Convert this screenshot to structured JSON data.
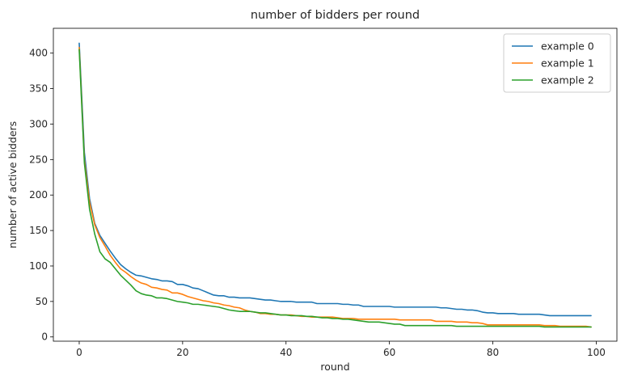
{
  "chart_data": {
    "type": "line",
    "title": "number of bidders per round",
    "xlabel": "round",
    "ylabel": "number of active bidders",
    "xlim": [
      -5,
      104
    ],
    "ylim": [
      -6,
      435
    ],
    "xticks": [
      0,
      20,
      40,
      60,
      80,
      100
    ],
    "yticks": [
      0,
      50,
      100,
      150,
      200,
      250,
      300,
      350,
      400
    ],
    "grid": false,
    "legend": "top-right",
    "colors": [
      "#1f77b4",
      "#ff7f0e",
      "#2ca02c"
    ],
    "series": [
      {
        "name": "example 0",
        "x": [
          0,
          1,
          2,
          3,
          4,
          5,
          6,
          7,
          8,
          9,
          10,
          11,
          12,
          13,
          14,
          15,
          16,
          17,
          18,
          19,
          20,
          21,
          22,
          23,
          24,
          25,
          26,
          27,
          28,
          29,
          30,
          31,
          32,
          33,
          34,
          35,
          36,
          37,
          38,
          39,
          40,
          41,
          42,
          43,
          44,
          45,
          46,
          47,
          48,
          49,
          50,
          51,
          52,
          53,
          54,
          55,
          56,
          57,
          58,
          59,
          60,
          61,
          62,
          63,
          64,
          65,
          66,
          67,
          68,
          69,
          70,
          71,
          72,
          73,
          74,
          75,
          76,
          77,
          78,
          79,
          80,
          81,
          82,
          83,
          84,
          85,
          86,
          87,
          88,
          89,
          90,
          91,
          92,
          93,
          94,
          95,
          96,
          97,
          98,
          99
        ],
        "values": [
          414,
          260,
          195,
          160,
          143,
          132,
          121,
          111,
          102,
          96,
          91,
          87,
          86,
          84,
          82,
          81,
          79,
          79,
          78,
          74,
          74,
          72,
          69,
          68,
          65,
          62,
          59,
          58,
          58,
          56,
          56,
          55,
          55,
          55,
          54,
          53,
          52,
          52,
          51,
          50,
          50,
          50,
          49,
          49,
          49,
          49,
          47,
          47,
          47,
          47,
          47,
          46,
          46,
          45,
          45,
          43,
          43,
          43,
          43,
          43,
          43,
          42,
          42,
          42,
          42,
          42,
          42,
          42,
          42,
          42,
          41,
          41,
          40,
          39,
          39,
          38,
          38,
          37,
          35,
          34,
          34,
          33,
          33,
          33,
          33,
          32,
          32,
          32,
          32,
          32,
          31,
          30,
          30,
          30,
          30,
          30,
          30,
          30,
          30,
          30
        ]
      },
      {
        "name": "example 1",
        "x": [
          0,
          1,
          2,
          3,
          4,
          5,
          6,
          7,
          8,
          9,
          10,
          11,
          12,
          13,
          14,
          15,
          16,
          17,
          18,
          19,
          20,
          21,
          22,
          23,
          24,
          25,
          26,
          27,
          28,
          29,
          30,
          31,
          32,
          33,
          34,
          35,
          36,
          37,
          38,
          39,
          40,
          41,
          42,
          43,
          44,
          45,
          46,
          47,
          48,
          49,
          50,
          51,
          52,
          53,
          54,
          55,
          56,
          57,
          58,
          59,
          60,
          61,
          62,
          63,
          64,
          65,
          66,
          67,
          68,
          69,
          70,
          71,
          72,
          73,
          74,
          75,
          76,
          77,
          78,
          79,
          80,
          81,
          82,
          83,
          84,
          85,
          86,
          87,
          88,
          89,
          90,
          91,
          92,
          93,
          94,
          95,
          96,
          97,
          98,
          99
        ],
        "values": [
          408,
          250,
          190,
          158,
          140,
          128,
          115,
          105,
          96,
          91,
          85,
          80,
          76,
          74,
          70,
          69,
          67,
          66,
          62,
          62,
          60,
          57,
          55,
          53,
          51,
          50,
          48,
          47,
          45,
          44,
          42,
          41,
          38,
          36,
          35,
          33,
          33,
          32,
          32,
          31,
          31,
          31,
          30,
          29,
          29,
          28,
          28,
          28,
          28,
          28,
          27,
          26,
          26,
          26,
          25,
          25,
          25,
          25,
          25,
          25,
          25,
          25,
          24,
          24,
          24,
          24,
          24,
          24,
          24,
          22,
          22,
          22,
          22,
          21,
          21,
          21,
          20,
          20,
          19,
          17,
          17,
          17,
          17,
          17,
          17,
          17,
          17,
          17,
          17,
          17,
          16,
          16,
          16,
          15,
          15,
          15,
          15,
          15,
          15,
          14
        ]
      },
      {
        "name": "example 2",
        "x": [
          0,
          1,
          2,
          3,
          4,
          5,
          6,
          7,
          8,
          9,
          10,
          11,
          12,
          13,
          14,
          15,
          16,
          17,
          18,
          19,
          20,
          21,
          22,
          23,
          24,
          25,
          26,
          27,
          28,
          29,
          30,
          31,
          32,
          33,
          34,
          35,
          36,
          37,
          38,
          39,
          40,
          41,
          42,
          43,
          44,
          45,
          46,
          47,
          48,
          49,
          50,
          51,
          52,
          53,
          54,
          55,
          56,
          57,
          58,
          59,
          60,
          61,
          62,
          63,
          64,
          65,
          66,
          67,
          68,
          69,
          70,
          71,
          72,
          73,
          74,
          75,
          76,
          77,
          78,
          79,
          80,
          81,
          82,
          83,
          84,
          85,
          86,
          87,
          88,
          89,
          90,
          91,
          92,
          93,
          94,
          95,
          96,
          97,
          98,
          99
        ],
        "values": [
          405,
          245,
          180,
          145,
          120,
          110,
          105,
          96,
          87,
          80,
          73,
          65,
          61,
          59,
          58,
          55,
          55,
          54,
          52,
          50,
          49,
          48,
          46,
          46,
          45,
          44,
          43,
          42,
          40,
          38,
          37,
          36,
          36,
          36,
          35,
          34,
          34,
          33,
          32,
          31,
          31,
          30,
          30,
          30,
          29,
          29,
          28,
          27,
          27,
          26,
          26,
          25,
          25,
          24,
          23,
          22,
          21,
          21,
          21,
          20,
          19,
          18,
          18,
          16,
          16,
          16,
          16,
          16,
          16,
          16,
          16,
          16,
          16,
          15,
          15,
          15,
          15,
          15,
          15,
          15,
          15,
          15,
          15,
          15,
          15,
          15,
          15,
          15,
          15,
          15,
          14,
          14,
          14,
          14,
          14,
          14,
          14,
          14,
          14,
          14
        ]
      }
    ]
  }
}
